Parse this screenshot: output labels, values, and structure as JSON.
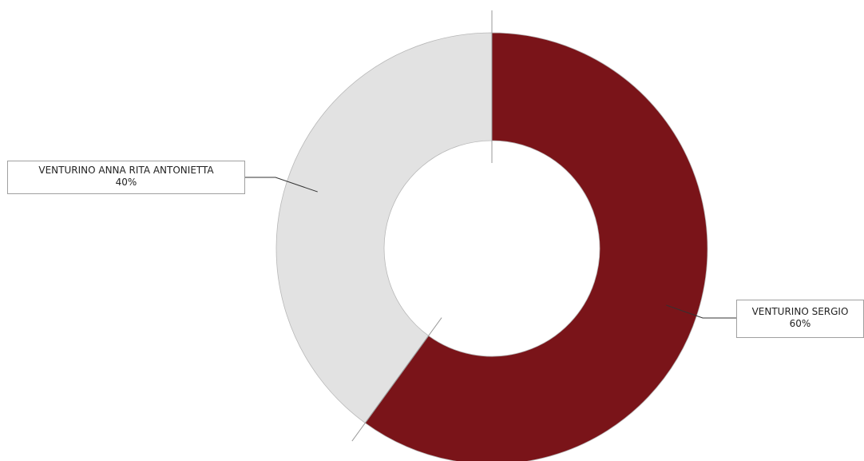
{
  "chart_data": {
    "type": "pie",
    "variant": "donut",
    "slices": [
      {
        "label": "VENTURINO SERGIO",
        "value": 60,
        "value_label": "60%",
        "color": "#7a1419"
      },
      {
        "label": "VENTURINO ANNA RITA ANTONIETTA",
        "value": 40,
        "value_label": "40%",
        "color": "#e2e2e2"
      }
    ],
    "legend": "none",
    "labels": "outside-callouts"
  }
}
